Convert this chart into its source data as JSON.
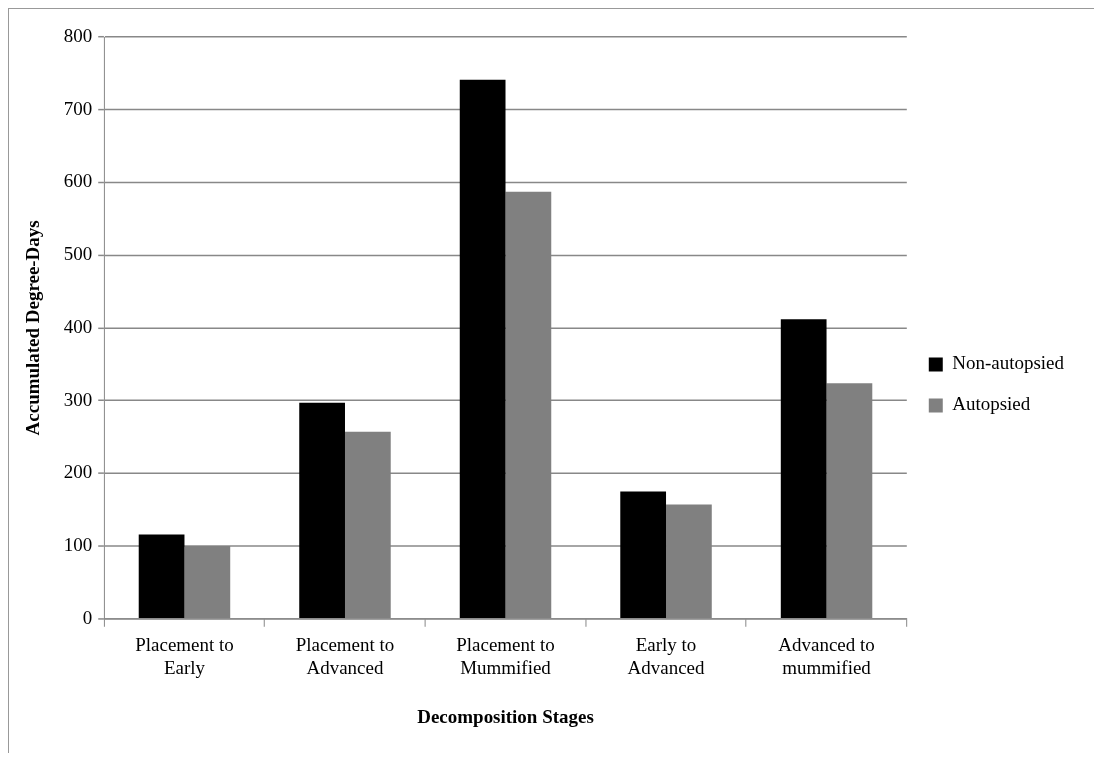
{
  "chart_data": {
    "type": "bar",
    "xlabel": "Decomposition Stages",
    "ylabel": "Accumulated Degree-Days",
    "categories": [
      "Placement to Early",
      "Placement to Advanced",
      "Placement to Mummified",
      "Early to Advanced",
      "Advanced to mummified"
    ],
    "series": [
      {
        "name": "Non-autopsied",
        "color": "#000000",
        "values": [
          116,
          297,
          741,
          175,
          412
        ]
      },
      {
        "name": "Autopsied",
        "color": "#808080",
        "values": [
          100,
          257,
          587,
          157,
          324
        ]
      }
    ],
    "ylim": [
      0,
      800
    ],
    "yticks": [
      0,
      100,
      200,
      300,
      400,
      500,
      600,
      700,
      800
    ],
    "grid": "y",
    "legend": "right"
  }
}
